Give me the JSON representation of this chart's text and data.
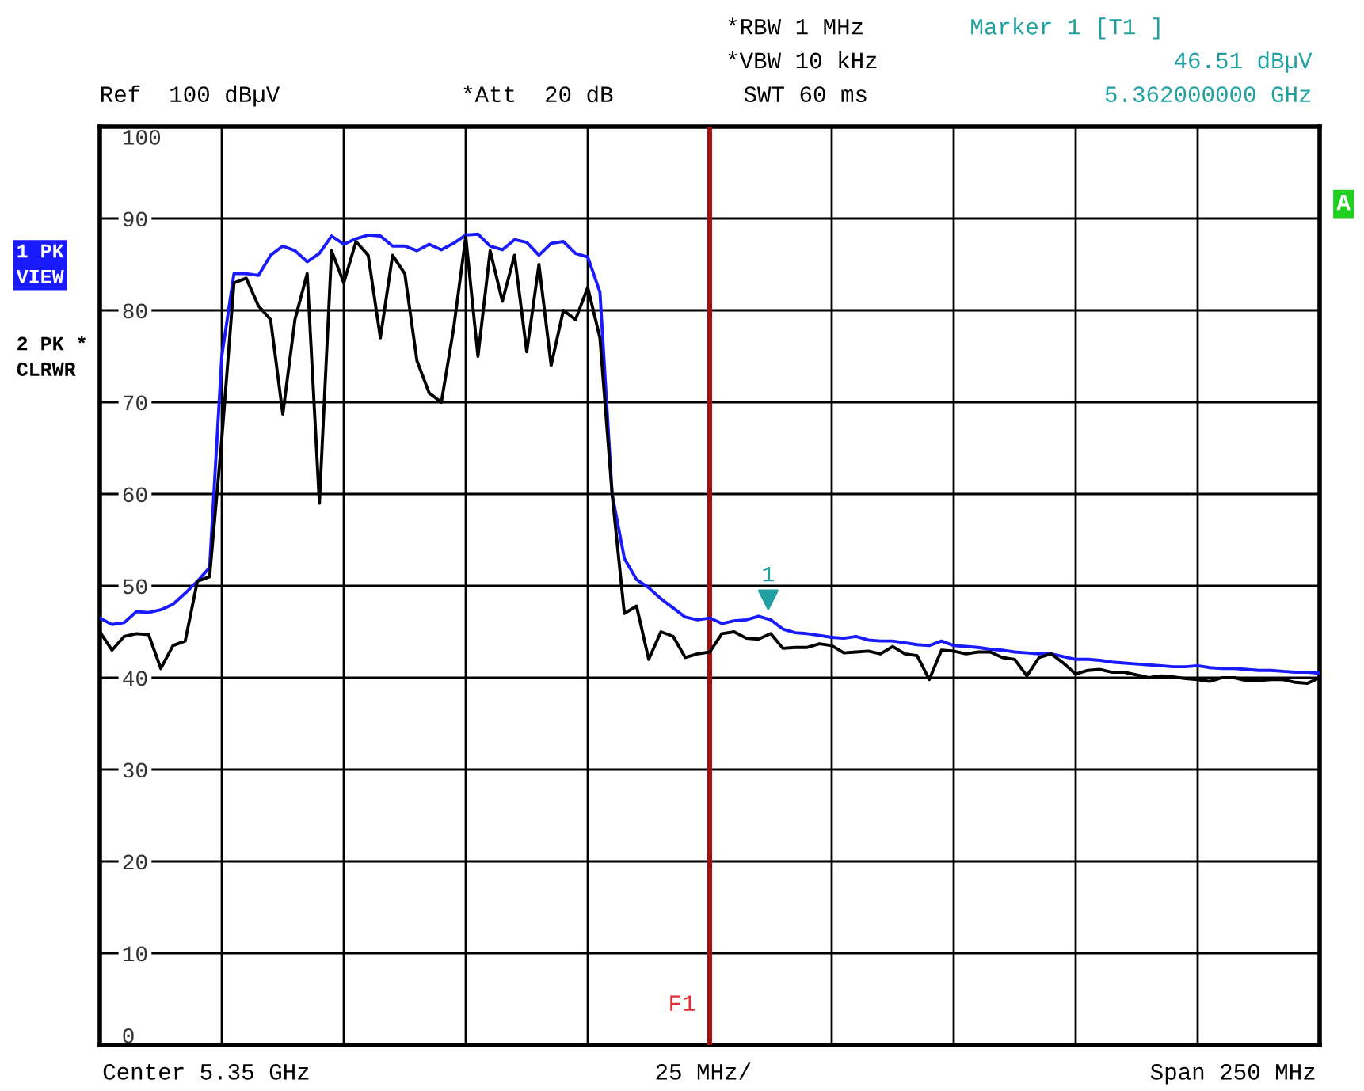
{
  "chart_data": {
    "type": "line",
    "categories": [
      null,
      null,
      null,
      null,
      null,
      null,
      null,
      null,
      null,
      null,
      null,
      null,
      null,
      null,
      null,
      null,
      null,
      null,
      null,
      null,
      null,
      null,
      null,
      null,
      null,
      null,
      null,
      null,
      null,
      null,
      null,
      null,
      null,
      null,
      null,
      null,
      null,
      null,
      null,
      null,
      null,
      null,
      null,
      null,
      null,
      null,
      null,
      null,
      null,
      null,
      null,
      null,
      null,
      null,
      null,
      null,
      null,
      null,
      null,
      null,
      null,
      null,
      null,
      null,
      null,
      null,
      null,
      null,
      null,
      null,
      null,
      null,
      null,
      null,
      null,
      null,
      null,
      null,
      null,
      null,
      null,
      null,
      null,
      null,
      null,
      null,
      null,
      null,
      null,
      null,
      null,
      null,
      null,
      null,
      null,
      null,
      null,
      null,
      null,
      null,
      null
    ],
    "ylim": [
      0,
      100
    ],
    "yticks": [
      0,
      10,
      20,
      30,
      40,
      50,
      60,
      70,
      80,
      90,
      100
    ],
    "tick_labels": "y",
    "grid": true,
    "line_style": "solid",
    "series": [
      {
        "name": "1 PK\nVIEW",
        "color": "#1a1aff",
        "values": [
          46.5,
          45.8,
          46,
          47.2,
          47.1,
          47.4,
          48,
          49.2,
          50.5,
          52,
          75,
          84,
          84,
          83.8,
          86,
          87,
          86.5,
          85.3,
          86.2,
          88.1,
          87.2,
          87.8,
          88.2,
          88.1,
          87,
          87,
          86.5,
          87.2,
          86.6,
          87.3,
          88.2,
          88.3,
          87,
          86.6,
          87.7,
          87.4,
          86,
          87.3,
          87.5,
          86.2,
          85.8,
          82,
          60,
          53,
          50.7,
          49.8,
          48.6,
          47.6,
          46.6,
          46.3,
          46.5,
          45.9,
          46.2,
          46.3,
          46.7,
          46.3,
          45.3,
          44.9,
          44.8,
          44.6,
          44.4,
          44.3,
          44.5,
          44.1,
          44,
          44,
          43.8,
          43.6,
          43.5,
          44,
          43.5,
          43.4,
          43.3,
          43.1,
          43,
          42.8,
          42.7,
          42.6,
          42.6,
          42.3,
          42,
          42,
          41.9,
          41.7,
          41.6,
          41.5,
          41.4,
          41.3,
          41.2,
          41.2,
          41.3,
          41.1,
          41,
          41,
          40.9,
          40.8,
          40.8,
          40.7,
          40.6,
          40.6,
          40.5
        ]
      },
      {
        "name": "2 PK *\nCLRWR",
        "color": "#000000",
        "values": [
          45,
          43,
          44.5,
          44.8,
          44.7,
          41,
          43.5,
          44,
          50.5,
          51,
          66,
          83,
          83.5,
          80.5,
          79,
          68.7,
          79,
          84,
          59,
          86.5,
          83,
          87.5,
          86,
          77,
          86,
          84,
          74.5,
          71,
          70,
          78,
          88,
          75,
          86.5,
          81,
          86,
          75.5,
          85,
          74,
          80,
          79,
          82.5,
          77,
          60,
          47,
          47.8,
          42,
          45,
          44.5,
          42.2,
          42.6,
          42.8,
          44.8,
          45,
          44.3,
          44.2,
          44.8,
          43.2,
          43.3,
          43.3,
          43.7,
          43.5,
          42.7,
          42.8,
          42.9,
          42.6,
          43.4,
          42.6,
          42.4,
          39.8,
          43,
          42.9,
          42.6,
          42.8,
          42.8,
          42.2,
          42,
          40.2,
          42.2,
          42.6,
          41.6,
          40.4,
          40.8,
          40.9,
          40.6,
          40.6,
          40.3,
          40,
          40.2,
          40.1,
          39.9,
          39.8,
          39.6,
          40,
          40,
          39.7,
          39.7,
          39.8,
          39.8,
          39.5,
          39.4,
          40
        ]
      }
    ],
    "annotations": [
      "F1",
      "Ref  100 dBµV",
      "*Att  20 dB",
      "*RBW 1 MHz",
      "*VBW 10 kHz",
      "SWT 60 ms",
      "Marker 1 [T1 ]",
      "46.51 dBµV",
      "5.362000000 GHz",
      "A",
      "Center 5.35 GHz",
      "25 MHz/",
      "Span 250 MHz",
      "1"
    ]
  }
}
